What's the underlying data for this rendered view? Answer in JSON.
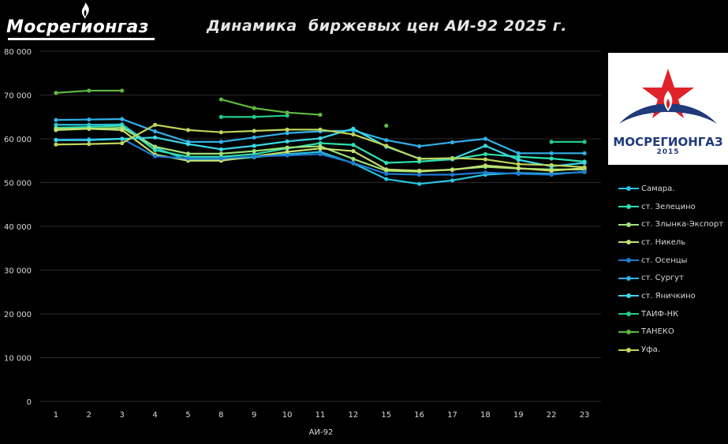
{
  "header": {
    "logo_text": "Мосрегионгаз",
    "title": "Динамика  биржевых цен АИ-92 2025 г."
  },
  "right_logo": {
    "brand": "МОСРЕГИОНГАЗ",
    "year": "2015"
  },
  "chart_data": {
    "type": "line",
    "title": "Динамика  биржевых цен АИ-92 2025 г.",
    "xlabel": "АИ-92",
    "ylabel": "",
    "categories": [
      "1",
      "2",
      "3",
      "4",
      "5",
      "8",
      "9",
      "10",
      "11",
      "12",
      "15",
      "16",
      "17",
      "18",
      "19",
      "22",
      "23"
    ],
    "ylim": [
      0,
      80000
    ],
    "yticks": [
      0,
      10000,
      20000,
      30000,
      40000,
      50000,
      60000,
      70000,
      80000
    ],
    "ytick_labels": [
      "0",
      "10 000",
      "20 000",
      "30 000",
      "40 000",
      "50 000",
      "60 000",
      "70 000",
      "80 000"
    ],
    "grid": true,
    "legend_position": "right",
    "series": [
      {
        "name": "Самара.",
        "color": "#29c3e0",
        "values": [
          63200,
          63200,
          63300,
          58000,
          55100,
          55100,
          55800,
          56500,
          57000,
          54400,
          50800,
          49700,
          50500,
          51800,
          52200,
          52000,
          52400
        ]
      },
      {
        "name": "ст. Зелецино",
        "color": "#2ee0b0",
        "values": [
          62500,
          62700,
          63000,
          57400,
          55900,
          55900,
          56500,
          57800,
          59000,
          58600,
          54500,
          54800,
          55300,
          56500,
          55900,
          55500,
          54800
        ]
      },
      {
        "name": "ст. Злынка-Экспорт",
        "color": "#9fe07a",
        "values": [
          62300,
          62300,
          62500,
          58200,
          56600,
          56600,
          57200,
          58000,
          58300,
          55400,
          52700,
          52500,
          53000,
          53600,
          53200,
          53000,
          53000
        ]
      },
      {
        "name": "ст. Никель",
        "color": "#c4e070",
        "values": [
          62000,
          62300,
          62000,
          56400,
          55000,
          55000,
          56000,
          57000,
          57800,
          57200,
          53000,
          52700,
          52900,
          53900,
          53300,
          52700,
          53300
        ]
      },
      {
        "name": "ст. Осенцы",
        "color": "#1f7ad1",
        "values": [
          59800,
          59900,
          60000,
          56000,
          55500,
          55500,
          56000,
          56200,
          56500,
          54500,
          52000,
          51800,
          51800,
          52300,
          52000,
          51800,
          52500
        ]
      },
      {
        "name": "ст. Сургут",
        "color": "#31b0e8",
        "values": [
          64300,
          64400,
          64500,
          61700,
          59300,
          59300,
          60300,
          61300,
          61700,
          61900,
          59700,
          58300,
          59200,
          60000,
          56700,
          56700,
          56700
        ]
      },
      {
        "name": "ст. Яничкино",
        "color": "#3ad8e8",
        "values": [
          59700,
          59700,
          60000,
          60300,
          58800,
          57600,
          58400,
          59400,
          60100,
          62300,
          58200,
          55500,
          55400,
          58400,
          55200,
          53700,
          54500
        ]
      },
      {
        "name": "ТАИФ-НК",
        "color": "#24c98a",
        "values": [
          null,
          null,
          null,
          null,
          null,
          65000,
          65000,
          65300,
          null,
          null,
          null,
          null,
          null,
          null,
          null,
          59300,
          59300
        ]
      },
      {
        "name": "ТАНЕКО",
        "color": "#5fb83f",
        "values": [
          70500,
          71000,
          71000,
          null,
          null,
          69000,
          67000,
          66000,
          65500,
          null,
          63000,
          null,
          null,
          null,
          null,
          null,
          null
        ]
      },
      {
        "name": "Уфа.",
        "color": "#bed65a",
        "values": [
          58700,
          58800,
          59000,
          63200,
          62000,
          61500,
          61800,
          62100,
          62100,
          61000,
          58400,
          55400,
          55600,
          55300,
          54200,
          54000,
          53500
        ]
      }
    ]
  }
}
